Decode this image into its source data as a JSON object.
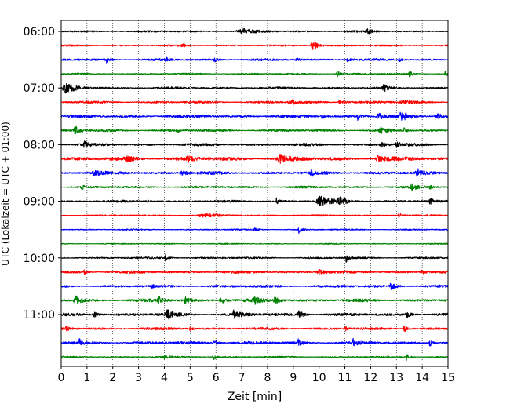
{
  "chart_data": {
    "type": "line",
    "title": "",
    "xlabel": "Zeit  [min]",
    "ylabel": "UTC (Lokalzeit = UTC + 01:00)",
    "xlim": [
      0,
      15
    ],
    "x_ticks": [
      "0",
      "1",
      "2",
      "3",
      "4",
      "5",
      "6",
      "7",
      "8",
      "9",
      "10",
      "11",
      "12",
      "13",
      "14",
      "15"
    ],
    "y_tick_labels": [
      "06:00",
      "07:00",
      "08:00",
      "09:00",
      "10:00",
      "11:00"
    ],
    "grid": "vertical dotted",
    "colors": [
      "#000000",
      "#ff0000",
      "#0000ff",
      "#008000"
    ],
    "trace_color_cycle": [
      "black",
      "red",
      "blue",
      "green"
    ],
    "trace_start_times": [
      "06:00",
      "06:15",
      "06:30",
      "06:45",
      "07:00",
      "07:15",
      "07:30",
      "07:45",
      "08:00",
      "08:15",
      "08:30",
      "08:45",
      "09:00",
      "09:15",
      "09:30",
      "09:45",
      "10:00",
      "10:15",
      "10:30",
      "10:45",
      "11:00",
      "11:15",
      "11:30",
      "11:45"
    ],
    "series": [
      {
        "start": "06:00",
        "color": "black",
        "noise": 0.25,
        "events": [
          [
            7.0,
            0.28,
            0.6
          ],
          [
            11.9,
            0.12,
            0.5
          ]
        ]
      },
      {
        "start": "06:15",
        "color": "red",
        "noise": 0.22,
        "events": [
          [
            9.75,
            0.12,
            1.2
          ],
          [
            4.7,
            0.05,
            0.5
          ]
        ]
      },
      {
        "start": "06:30",
        "color": "blue",
        "noise": 0.3,
        "events": [
          [
            1.75,
            0.05,
            0.9
          ],
          [
            4.05,
            0.05,
            0.5
          ],
          [
            5.95,
            0.05,
            0.5
          ],
          [
            9.1,
            0.05,
            0.5
          ],
          [
            11.1,
            0.05,
            0.5
          ],
          [
            13.1,
            0.05,
            0.5
          ]
        ]
      },
      {
        "start": "06:45",
        "color": "green",
        "noise": 0.22,
        "events": [
          [
            10.7,
            0.05,
            0.8
          ],
          [
            13.5,
            0.05,
            0.8
          ],
          [
            14.9,
            0.05,
            1.0
          ]
        ]
      },
      {
        "start": "07:00",
        "color": "black",
        "noise": 0.3,
        "events": [
          [
            0.2,
            0.22,
            1.1
          ],
          [
            12.5,
            0.05,
            1.0
          ]
        ]
      },
      {
        "start": "07:15",
        "color": "red",
        "noise": 0.3,
        "events": [
          [
            8.9,
            0.12,
            0.6
          ],
          [
            10.8,
            0.1,
            0.6
          ],
          [
            13.3,
            0.25,
            0.3
          ]
        ]
      },
      {
        "start": "07:30",
        "color": "blue",
        "noise": 0.38,
        "events": [
          [
            10.1,
            0.05,
            0.8
          ],
          [
            11.5,
            0.05,
            0.8
          ],
          [
            12.3,
            0.1,
            0.8
          ],
          [
            13.2,
            0.15,
            1.0
          ],
          [
            14.6,
            0.15,
            0.7
          ]
        ]
      },
      {
        "start": "07:45",
        "color": "green",
        "noise": 0.32,
        "events": [
          [
            0.55,
            0.1,
            1.0
          ],
          [
            4.5,
            0.05,
            0.5
          ],
          [
            12.4,
            0.1,
            0.8
          ],
          [
            13.3,
            0.05,
            0.5
          ]
        ]
      },
      {
        "start": "08:00",
        "color": "black",
        "noise": 0.35,
        "events": [
          [
            0.9,
            0.05,
            1.0
          ],
          [
            12.4,
            0.1,
            0.6
          ],
          [
            13.0,
            0.1,
            0.6
          ]
        ]
      },
      {
        "start": "08:15",
        "color": "red",
        "noise": 0.5,
        "events": [
          [
            2.55,
            0.12,
            0.7
          ],
          [
            4.9,
            0.1,
            0.7
          ],
          [
            8.5,
            0.15,
            1.0
          ],
          [
            12.3,
            0.15,
            0.8
          ]
        ]
      },
      {
        "start": "08:30",
        "color": "blue",
        "noise": 0.4,
        "events": [
          [
            1.3,
            0.12,
            0.6
          ],
          [
            4.7,
            0.12,
            0.6
          ],
          [
            9.7,
            0.05,
            0.8
          ],
          [
            13.8,
            0.08,
            1.0
          ]
        ]
      },
      {
        "start": "08:45",
        "color": "green",
        "noise": 0.3,
        "events": [
          [
            0.8,
            0.05,
            0.6
          ],
          [
            13.6,
            0.1,
            0.7
          ],
          [
            14.3,
            0.05,
            0.5
          ]
        ]
      },
      {
        "start": "09:00",
        "color": "black",
        "noise": 0.3,
        "events": [
          [
            10.05,
            0.2,
            1.5
          ],
          [
            10.8,
            0.15,
            0.8
          ],
          [
            8.35,
            0.05,
            0.8
          ],
          [
            14.3,
            0.05,
            0.9
          ],
          [
            3.3,
            0.05,
            0.4
          ]
        ]
      },
      {
        "start": "09:15",
        "color": "red",
        "noise": 0.22,
        "events": [
          [
            5.5,
            0.25,
            0.5
          ],
          [
            13.1,
            0.05,
            0.8
          ]
        ]
      },
      {
        "start": "09:30",
        "color": "blue",
        "noise": 0.18,
        "events": [
          [
            9.2,
            0.05,
            1.0
          ],
          [
            7.5,
            0.1,
            0.3
          ]
        ]
      },
      {
        "start": "09:45",
        "color": "green",
        "noise": 0.15,
        "events": []
      },
      {
        "start": "10:00",
        "color": "black",
        "noise": 0.25,
        "events": [
          [
            4.05,
            0.05,
            1.0
          ],
          [
            11.05,
            0.05,
            1.0
          ]
        ]
      },
      {
        "start": "10:15",
        "color": "red",
        "noise": 0.35,
        "events": [
          [
            10.0,
            0.12,
            0.6
          ],
          [
            14.0,
            0.05,
            0.7
          ],
          [
            0.9,
            0.05,
            0.4
          ]
        ]
      },
      {
        "start": "10:30",
        "color": "blue",
        "noise": 0.35,
        "events": [
          [
            12.8,
            0.1,
            1.0
          ],
          [
            3.5,
            0.05,
            0.4
          ]
        ]
      },
      {
        "start": "10:45",
        "color": "green",
        "noise": 0.4,
        "events": [
          [
            0.55,
            0.1,
            1.1
          ],
          [
            3.8,
            0.1,
            0.7
          ],
          [
            4.8,
            0.1,
            0.8
          ],
          [
            6.2,
            0.1,
            0.8
          ],
          [
            7.5,
            0.12,
            0.7
          ],
          [
            8.3,
            0.1,
            0.8
          ]
        ]
      },
      {
        "start": "11:00",
        "color": "black",
        "noise": 0.4,
        "events": [
          [
            1.3,
            0.1,
            0.6
          ],
          [
            4.1,
            0.12,
            1.2
          ],
          [
            6.7,
            0.15,
            0.9
          ],
          [
            9.2,
            0.1,
            1.0
          ],
          [
            13.4,
            0.1,
            0.7
          ]
        ]
      },
      {
        "start": "11:15",
        "color": "red",
        "noise": 0.35,
        "events": [
          [
            0.2,
            0.05,
            0.8
          ],
          [
            13.3,
            0.05,
            0.9
          ],
          [
            5.0,
            0.05,
            0.5
          ],
          [
            11.0,
            0.05,
            0.5
          ]
        ]
      },
      {
        "start": "11:30",
        "color": "blue",
        "noise": 0.4,
        "events": [
          [
            0.7,
            0.05,
            0.8
          ],
          [
            5.95,
            0.05,
            1.0
          ],
          [
            9.2,
            0.05,
            0.9
          ],
          [
            11.3,
            0.05,
            1.0
          ],
          [
            14.3,
            0.05,
            0.9
          ]
        ]
      },
      {
        "start": "11:45",
        "color": "green",
        "noise": 0.22,
        "events": [
          [
            5.9,
            0.05,
            0.8
          ],
          [
            4.0,
            0.05,
            0.4
          ],
          [
            13.4,
            0.05,
            0.8
          ]
        ]
      }
    ]
  }
}
